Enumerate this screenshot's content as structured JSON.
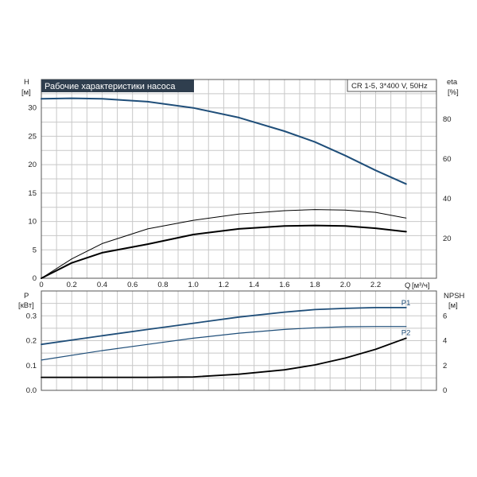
{
  "chart_data": [
    {
      "type": "line",
      "title": "Рабочие характеристики насоса",
      "model_label": "CR 1-5, 3*400 V, 50Hz",
      "xlabel": "Q [м³/ч]",
      "x_axis_label_q": "Q",
      "x_axis_label_unit": "[м³/ч]",
      "ylabel_left": "H",
      "ylabel_left_unit": "[м]",
      "ylabel_right": "eta",
      "ylabel_right_unit": "[%]",
      "xlim": [
        0,
        2.6
      ],
      "ylim_left": [
        0,
        35
      ],
      "ylim_right_eta": [
        0,
        100
      ],
      "x_ticks": [
        "0",
        "0.2",
        "0.4",
        "0.6",
        "0.8",
        "1.0",
        "1.2",
        "1.4",
        "1.6",
        "1.8",
        "2.0",
        "2.2"
      ],
      "y_ticks_left": [
        "0",
        "5",
        "10",
        "15",
        "20",
        "25",
        "30"
      ],
      "y_ticks_right": [
        "20",
        "40",
        "60",
        "80"
      ],
      "grid": true,
      "series": [
        {
          "color": "#1f4e79",
          "axis": "left",
          "x": [
            0,
            0.2,
            0.4,
            0.7,
            1.0,
            1.3,
            1.6,
            1.8,
            2.0,
            2.2,
            2.4
          ],
          "y": [
            31.6,
            31.7,
            31.6,
            31.1,
            30.0,
            28.3,
            25.9,
            24.0,
            21.6,
            19.0,
            16.6
          ]
        },
        {
          "color": "#000000",
          "axis": "left",
          "x": [
            0,
            0.2,
            0.4,
            0.7,
            1.0,
            1.3,
            1.6,
            1.8,
            2.0,
            2.2,
            2.4
          ],
          "y": [
            0,
            3.4,
            6.1,
            8.7,
            10.2,
            11.3,
            11.9,
            12.1,
            12.0,
            11.6,
            10.6
          ]
        },
        {
          "color": "#000000",
          "axis": "left",
          "x": [
            0,
            0.2,
            0.4,
            0.7,
            1.0,
            1.3,
            1.6,
            1.8,
            2.0,
            2.2,
            2.4
          ],
          "y": [
            0,
            2.7,
            4.5,
            6.0,
            7.7,
            8.7,
            9.2,
            9.3,
            9.2,
            8.8,
            8.2
          ]
        }
      ]
    },
    {
      "type": "line",
      "xlim": [
        0,
        2.6
      ],
      "ylabel_left": "P",
      "ylabel_left_unit": "[кВт]",
      "ylabel_right": "NPSH",
      "ylabel_right_unit": "[м]",
      "ylim_left": [
        0,
        0.4
      ],
      "ylim_right_npsh": [
        0,
        8
      ],
      "y_ticks_left": [
        "0.0",
        "0.1",
        "0.2",
        "0.3"
      ],
      "y_ticks_right": [
        "0",
        "2",
        "4",
        "6"
      ],
      "grid": true,
      "series": [
        {
          "name": "P1",
          "color": "#1f4e79",
          "axis": "left",
          "x": [
            0,
            0.4,
            0.7,
            1.0,
            1.3,
            1.6,
            1.8,
            2.0,
            2.2,
            2.4
          ],
          "y": [
            0.185,
            0.22,
            0.245,
            0.27,
            0.295,
            0.315,
            0.325,
            0.33,
            0.333,
            0.333
          ]
        },
        {
          "name": "P2",
          "color": "#1f4e79",
          "axis": "left",
          "x": [
            0,
            0.4,
            0.7,
            1.0,
            1.3,
            1.6,
            1.8,
            2.0,
            2.2,
            2.4
          ],
          "y": [
            0.122,
            0.16,
            0.185,
            0.21,
            0.23,
            0.245,
            0.252,
            0.256,
            0.257,
            0.257
          ]
        },
        {
          "color": "#000000",
          "axis": "right",
          "x": [
            0,
            0.7,
            1.0,
            1.3,
            1.6,
            1.8,
            2.0,
            2.2,
            2.4
          ],
          "y": [
            1.05,
            1.05,
            1.08,
            1.3,
            1.65,
            2.05,
            2.6,
            3.3,
            4.2
          ]
        }
      ]
    }
  ]
}
